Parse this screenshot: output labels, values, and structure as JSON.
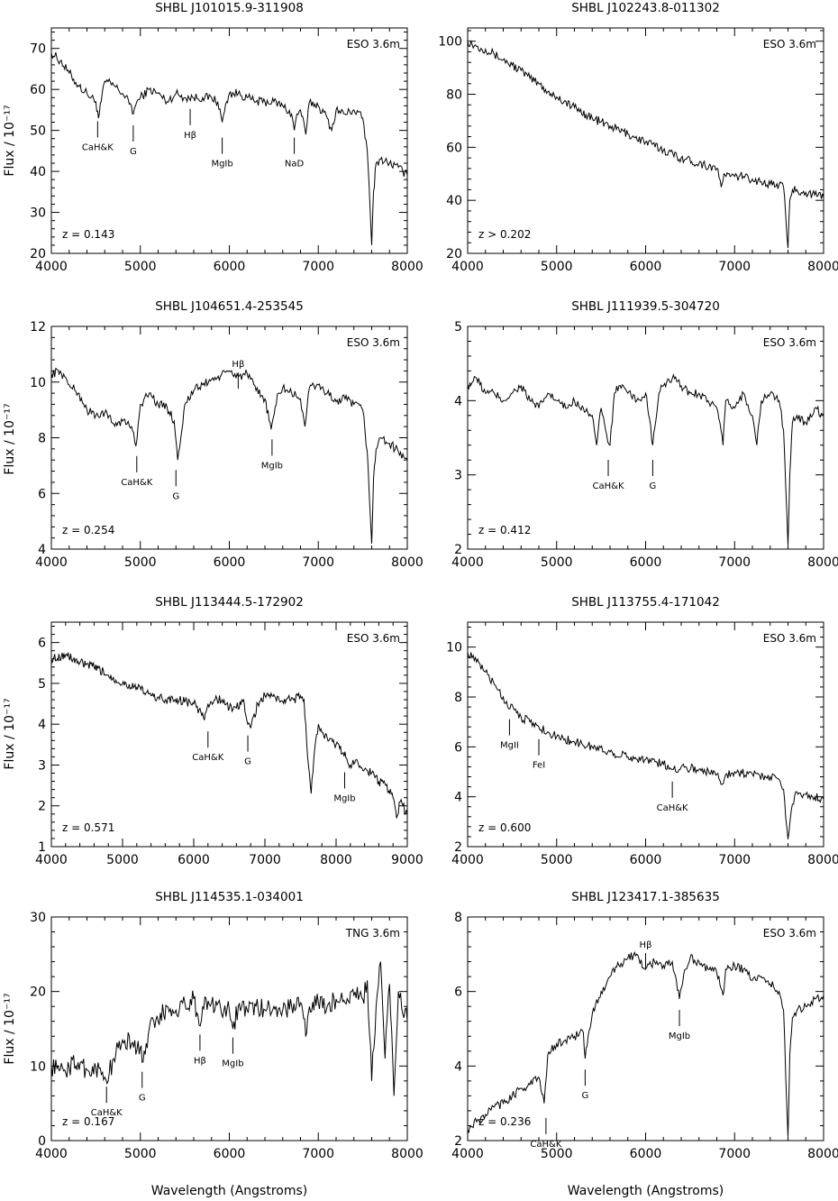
{
  "figure": {
    "ylabel": "Flux / 10⁻¹⁷",
    "xlabel": "Wavelength (Angstroms)"
  },
  "chart_data": [
    {
      "type": "line",
      "title": "SHBL J101015.9-311908",
      "telescope": "ESO 3.6m",
      "redshift": "z = 0.143",
      "xlim": [
        4000,
        8000
      ],
      "ylim": [
        20,
        75
      ],
      "xticks": [
        4000,
        5000,
        6000,
        7000,
        8000
      ],
      "yticks": [
        20,
        30,
        40,
        50,
        60,
        70
      ],
      "x": [
        4000,
        4100,
        4200,
        4300,
        4400,
        4500,
        4530,
        4560,
        4600,
        4700,
        4800,
        4900,
        4920,
        4960,
        5000,
        5100,
        5200,
        5300,
        5400,
        5500,
        5600,
        5700,
        5800,
        5870,
        5920,
        5970,
        6000,
        6100,
        6200,
        6300,
        6400,
        6500,
        6600,
        6700,
        6730,
        6760,
        6800,
        6860,
        6900,
        7000,
        7100,
        7150,
        7200,
        7300,
        7400,
        7500,
        7550,
        7580,
        7600,
        7620,
        7650,
        7700,
        7800,
        7900,
        8000
      ],
      "y": [
        69,
        67,
        64,
        61,
        59,
        57,
        53,
        57,
        62,
        61,
        59,
        56,
        54,
        57,
        58,
        60,
        59,
        57,
        59,
        58,
        58,
        58,
        58,
        57,
        52,
        57,
        59,
        59,
        58,
        57,
        57,
        57,
        56,
        54,
        50,
        54,
        55,
        49,
        57,
        56,
        53,
        50,
        55,
        54,
        55,
        53,
        45,
        32,
        22,
        35,
        42,
        43,
        42,
        41,
        39
      ],
      "annotations": [
        {
          "label": "CaH&K",
          "x": 4520,
          "side": "below",
          "y": 54
        },
        {
          "label": "G",
          "x": 4920,
          "side": "below",
          "y": 53
        },
        {
          "label": "Hβ",
          "x": 5560,
          "side": "below",
          "y": 57
        },
        {
          "label": "MgIb",
          "x": 5920,
          "side": "below",
          "y": 50
        },
        {
          "label": "NaD",
          "x": 6730,
          "side": "below",
          "y": 50
        }
      ]
    },
    {
      "type": "line",
      "title": "SHBL J102243.8-011302",
      "telescope": "ESO 3.6m",
      "redshift": "z > 0.202",
      "xlim": [
        4000,
        8000
      ],
      "ylim": [
        20,
        105
      ],
      "xticks": [
        4000,
        5000,
        6000,
        7000,
        8000
      ],
      "yticks": [
        20,
        40,
        60,
        80,
        100
      ],
      "x": [
        4000,
        4100,
        4200,
        4300,
        4400,
        4500,
        4600,
        4700,
        4800,
        4900,
        5000,
        5200,
        5400,
        5600,
        5800,
        6000,
        6200,
        6400,
        6600,
        6800,
        6850,
        6880,
        6950,
        7000,
        7100,
        7200,
        7300,
        7400,
        7500,
        7550,
        7600,
        7620,
        7650,
        7700,
        7800,
        7900,
        8000
      ],
      "y": [
        100,
        98,
        97,
        95,
        93,
        91,
        89,
        86,
        84,
        81,
        79,
        75,
        71,
        68,
        65,
        62,
        59,
        56,
        54,
        52,
        45,
        50,
        49,
        49,
        49,
        48,
        47,
        46,
        46,
        45,
        22,
        40,
        44,
        44,
        43,
        42,
        41
      ],
      "annotations": []
    },
    {
      "type": "line",
      "title": "SHBL J104651.4-253545",
      "telescope": "ESO 3.6m",
      "redshift": "z = 0.254",
      "xlim": [
        4000,
        8000
      ],
      "ylim": [
        4,
        12
      ],
      "xticks": [
        4000,
        5000,
        6000,
        7000,
        8000
      ],
      "yticks": [
        4,
        6,
        8,
        10,
        12
      ],
      "x": [
        4000,
        4100,
        4200,
        4300,
        4400,
        4500,
        4600,
        4700,
        4800,
        4900,
        4950,
        5000,
        5100,
        5200,
        5300,
        5380,
        5420,
        5500,
        5600,
        5700,
        5800,
        5900,
        6000,
        6100,
        6200,
        6300,
        6400,
        6470,
        6550,
        6600,
        6700,
        6800,
        6850,
        6900,
        7000,
        7100,
        7200,
        7300,
        7400,
        7500,
        7550,
        7600,
        7620,
        7650,
        7700,
        7800,
        7900,
        8000
      ],
      "y": [
        10.3,
        10.4,
        9.9,
        9.6,
        9,
        8.8,
        8.9,
        8.5,
        8.6,
        8.4,
        7.7,
        9.2,
        9.6,
        9.2,
        9.1,
        8.6,
        7.2,
        9.2,
        9.7,
        9.9,
        10.1,
        10.2,
        10.4,
        10.2,
        10.3,
        9.7,
        9.4,
        8.3,
        9.6,
        9.8,
        9.6,
        9.4,
        8.4,
        9.8,
        9.9,
        9.6,
        9.3,
        9.4,
        9.2,
        9,
        7.5,
        4.2,
        6.5,
        7.6,
        8,
        7.8,
        7.5,
        7.2
      ],
      "annotations": [
        {
          "label": "CaH&K",
          "x": 4960,
          "side": "below",
          "y": 7.6
        },
        {
          "label": "G",
          "x": 5400,
          "side": "below",
          "y": 7.1
        },
        {
          "label": "Hβ",
          "x": 6100,
          "side": "above",
          "y": 9.5
        },
        {
          "label": "MgIb",
          "x": 6480,
          "side": "below",
          "y": 8.2
        }
      ]
    },
    {
      "type": "line",
      "title": "SHBL J111939.5-304720",
      "telescope": "ESO 3.6m",
      "redshift": "z = 0.412",
      "xlim": [
        4000,
        8000
      ],
      "ylim": [
        2,
        5
      ],
      "xticks": [
        4000,
        5000,
        6000,
        7000,
        8000
      ],
      "yticks": [
        2,
        3,
        4,
        5
      ],
      "x": [
        4000,
        4100,
        4200,
        4300,
        4400,
        4500,
        4600,
        4700,
        4800,
        4900,
        5000,
        5100,
        5200,
        5300,
        5400,
        5450,
        5500,
        5550,
        5600,
        5650,
        5700,
        5800,
        5900,
        6000,
        6080,
        6150,
        6200,
        6300,
        6400,
        6500,
        6600,
        6700,
        6800,
        6870,
        6900,
        7000,
        7100,
        7200,
        7250,
        7300,
        7400,
        7500,
        7550,
        7600,
        7620,
        7650,
        7700,
        7800,
        7900,
        8000
      ],
      "y": [
        4.2,
        4.3,
        4.1,
        4.1,
        4,
        4.1,
        4.2,
        4,
        3.9,
        4.1,
        4,
        3.9,
        4,
        3.9,
        3.8,
        3.4,
        3.9,
        3.6,
        3.4,
        4.1,
        4.2,
        4.1,
        4,
        4.1,
        3.4,
        4.1,
        4.2,
        4.3,
        4.2,
        4.1,
        4.1,
        4,
        3.9,
        3.4,
        4,
        3.9,
        4.1,
        3.8,
        3.4,
        4,
        4.1,
        4,
        3.6,
        2.05,
        3,
        3.7,
        3.8,
        3.7,
        3.9,
        3.8
      ],
      "annotations": [
        {
          "label": "CaH&K",
          "x": 5580,
          "side": "below",
          "y": 3.3
        },
        {
          "label": "G",
          "x": 6080,
          "side": "below",
          "y": 3.3
        }
      ]
    },
    {
      "type": "line",
      "title": "SHBL J113444.5-172902",
      "telescope": "ESO 3.6m",
      "redshift": "z = 0.571",
      "xlim": [
        4000,
        9000
      ],
      "ylim": [
        1,
        6.5
      ],
      "xticks": [
        4000,
        5000,
        6000,
        7000,
        8000,
        9000
      ],
      "yticks": [
        1,
        2,
        3,
        4,
        5,
        6
      ],
      "x": [
        4000,
        4200,
        4400,
        4600,
        4800,
        5000,
        5200,
        5400,
        5600,
        5800,
        6000,
        6100,
        6150,
        6200,
        6300,
        6400,
        6500,
        6600,
        6700,
        6720,
        6760,
        6800,
        6900,
        7000,
        7100,
        7200,
        7300,
        7400,
        7500,
        7550,
        7600,
        7650,
        7700,
        7750,
        7800,
        7900,
        8000,
        8100,
        8200,
        8300,
        8400,
        8500,
        8600,
        8700,
        8800,
        8850,
        8900,
        9000
      ],
      "y": [
        5.6,
        5.7,
        5.5,
        5.4,
        5.2,
        5,
        4.9,
        4.7,
        4.6,
        4.6,
        4.5,
        4.3,
        4.1,
        4.5,
        4.6,
        4.6,
        4.4,
        4.4,
        4.6,
        4.3,
        4.0,
        3.9,
        4.5,
        4.7,
        4.7,
        4.6,
        4.6,
        4.6,
        4.7,
        4.6,
        3.2,
        2.3,
        3.4,
        4.0,
        3.8,
        3.6,
        3.5,
        3.3,
        3.0,
        3.1,
        2.9,
        2.8,
        2.6,
        2.5,
        2.2,
        1.7,
        2.1,
        1.8
      ],
      "annotations": [
        {
          "label": "CaH&K",
          "x": 6200,
          "side": "below",
          "y": 4
        },
        {
          "label": "G",
          "x": 6760,
          "side": "below",
          "y": 3.9
        },
        {
          "label": "MgIb",
          "x": 8120,
          "side": "below",
          "y": 3.0
        }
      ]
    },
    {
      "type": "line",
      "title": "SHBL J113755.4-171042",
      "telescope": "ESO 3.6m",
      "redshift": "z = 0.600",
      "xlim": [
        4000,
        8000
      ],
      "ylim": [
        2,
        11
      ],
      "xticks": [
        4000,
        5000,
        6000,
        7000,
        8000
      ],
      "yticks": [
        2,
        4,
        6,
        8,
        10
      ],
      "x": [
        4000,
        4100,
        4200,
        4300,
        4400,
        4450,
        4500,
        4600,
        4700,
        4800,
        4900,
        5000,
        5200,
        5400,
        5600,
        5800,
        6000,
        6200,
        6300,
        6400,
        6600,
        6800,
        6860,
        6900,
        7000,
        7200,
        7400,
        7500,
        7550,
        7600,
        7650,
        7700,
        7800,
        7900,
        8000
      ],
      "y": [
        9.8,
        9.4,
        9,
        8.5,
        8,
        7.6,
        7.7,
        7.2,
        7.0,
        6.8,
        6.6,
        6.4,
        6.2,
        6,
        5.8,
        5.6,
        5.5,
        5.3,
        5.1,
        5.2,
        5.1,
        4.9,
        4.5,
        4.9,
        5,
        4.9,
        4.8,
        4.7,
        4.3,
        2.3,
        3.7,
        4.2,
        4.1,
        4.0,
        3.9
      ],
      "annotations": [
        {
          "label": "MgII",
          "x": 4470,
          "side": "below",
          "y": 7.4
        },
        {
          "label": "FeI",
          "x": 4800,
          "side": "below",
          "y": 6.6
        },
        {
          "label": "CaH&K",
          "x": 6300,
          "side": "below",
          "y": 4.9
        }
      ]
    },
    {
      "type": "line",
      "title": "SHBL J114535.1-034001",
      "telescope": "TNG 3.6m",
      "redshift": "z = 0.167",
      "xlim": [
        4000,
        8000
      ],
      "ylim": [
        0,
        30
      ],
      "xticks": [
        4000,
        5000,
        6000,
        7000,
        8000
      ],
      "yticks": [
        0,
        10,
        20,
        30
      ],
      "x": [
        4000,
        4100,
        4200,
        4300,
        4400,
        4500,
        4600,
        4650,
        4700,
        4800,
        4900,
        5000,
        5020,
        5100,
        5200,
        5300,
        5400,
        5500,
        5600,
        5660,
        5700,
        5800,
        5900,
        6000,
        6040,
        6100,
        6200,
        6300,
        6400,
        6500,
        6600,
        6700,
        6800,
        6870,
        6900,
        7000,
        7100,
        7200,
        7300,
        7400,
        7500,
        7550,
        7600,
        7650,
        7700,
        7750,
        7800,
        7850,
        7900,
        8000
      ],
      "y": [
        10,
        9.5,
        9.8,
        10.5,
        9.5,
        9.8,
        8.5,
        9,
        11,
        13.5,
        13,
        12.5,
        10.5,
        15,
        16,
        18,
        17.5,
        18.5,
        19,
        15.5,
        18,
        18.5,
        18,
        17.5,
        15,
        18,
        17.5,
        18,
        17.5,
        18,
        17.5,
        18,
        18.5,
        14.5,
        18,
        18.5,
        18,
        19,
        18.5,
        19.5,
        19,
        21.5,
        8,
        18,
        24,
        11,
        21,
        6,
        20,
        16
      ],
      "annotations": [
        {
          "label": "CaH&K",
          "x": 4620,
          "side": "below",
          "y": 8.2
        },
        {
          "label": "G",
          "x": 5020,
          "side": "below",
          "y": 10.2
        },
        {
          "label": "Hβ",
          "x": 5670,
          "side": "below",
          "y": 15.2
        },
        {
          "label": "MgIb",
          "x": 6040,
          "side": "below",
          "y": 14.8
        }
      ]
    },
    {
      "type": "line",
      "title": "SHBL J123417.1-385635",
      "telescope": "ESO 3.6m",
      "redshift": "z = 0.236",
      "xlim": [
        4000,
        8000
      ],
      "ylim": [
        2,
        8
      ],
      "xticks": [
        4000,
        5000,
        6000,
        7000,
        8000
      ],
      "yticks": [
        2,
        4,
        6,
        8
      ],
      "x": [
        4000,
        4100,
        4200,
        4300,
        4400,
        4500,
        4600,
        4700,
        4800,
        4860,
        4900,
        5000,
        5100,
        5200,
        5300,
        5320,
        5400,
        5500,
        5600,
        5700,
        5800,
        5900,
        6000,
        6100,
        6200,
        6300,
        6380,
        6450,
        6500,
        6600,
        6700,
        6800,
        6870,
        6900,
        7000,
        7100,
        7200,
        7300,
        7400,
        7500,
        7550,
        7600,
        7620,
        7650,
        7700,
        7800,
        7900,
        8000
      ],
      "y": [
        2.3,
        2.5,
        2.7,
        2.9,
        3,
        3.2,
        3.4,
        3.5,
        3.7,
        3,
        4.3,
        4.6,
        4.7,
        4.8,
        4.9,
        4.2,
        5.4,
        6,
        6.4,
        6.7,
        6.9,
        7,
        6.6,
        6.8,
        6.7,
        6.8,
        5.8,
        6.6,
        6.9,
        6.8,
        6.6,
        6.5,
        5.9,
        6.6,
        6.7,
        6.6,
        6.3,
        6.4,
        6.2,
        6.0,
        5.5,
        2.1,
        4.3,
        5.3,
        5.5,
        5.6,
        5.8,
        5.9
      ],
      "annotations": [
        {
          "label": "CaH&K",
          "x": 4880,
          "side": "below",
          "y": 2.8
        },
        {
          "label": "G",
          "x": 5320,
          "side": "below",
          "y": 4.1
        },
        {
          "label": "Hβ",
          "x": 6000,
          "side": "above",
          "y": 6.4
        },
        {
          "label": "MgIb",
          "x": 6380,
          "side": "below",
          "y": 5.7
        }
      ]
    }
  ]
}
